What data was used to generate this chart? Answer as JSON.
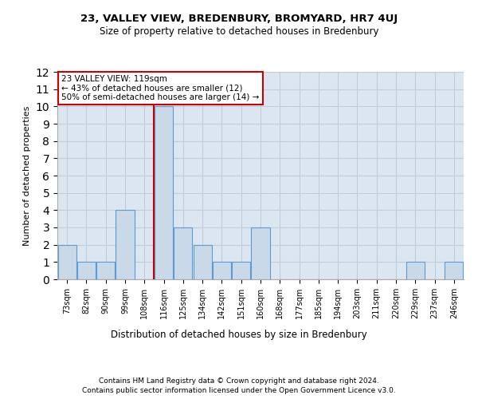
{
  "title1": "23, VALLEY VIEW, BREDENBURY, BROMYARD, HR7 4UJ",
  "title2": "Size of property relative to detached houses in Bredenbury",
  "xlabel": "Distribution of detached houses by size in Bredenbury",
  "ylabel": "Number of detached properties",
  "categories": [
    "73sqm",
    "82sqm",
    "90sqm",
    "99sqm",
    "108sqm",
    "116sqm",
    "125sqm",
    "134sqm",
    "142sqm",
    "151sqm",
    "160sqm",
    "168sqm",
    "177sqm",
    "185sqm",
    "194sqm",
    "203sqm",
    "211sqm",
    "220sqm",
    "229sqm",
    "237sqm",
    "246sqm"
  ],
  "values": [
    2,
    1,
    1,
    4,
    0,
    10,
    3,
    2,
    1,
    1,
    3,
    0,
    0,
    0,
    0,
    0,
    0,
    0,
    1,
    0,
    1
  ],
  "bar_color": "#c9d9e8",
  "bar_edge_color": "#5b9bd5",
  "annotation_text": "23 VALLEY VIEW: 119sqm\n← 43% of detached houses are smaller (12)\n50% of semi-detached houses are larger (14) →",
  "footer1": "Contains HM Land Registry data © Crown copyright and database right 2024.",
  "footer2": "Contains public sector information licensed under the Open Government Licence v3.0.",
  "ylim": [
    0,
    12
  ],
  "yticks": [
    0,
    1,
    2,
    3,
    4,
    5,
    6,
    7,
    8,
    9,
    10,
    11,
    12
  ],
  "grid_color": "#c0ccda",
  "bg_color": "#dce6f0",
  "vline_color": "#cc0000",
  "vline_x": 4.5,
  "annotation_box_color": "#cc0000"
}
